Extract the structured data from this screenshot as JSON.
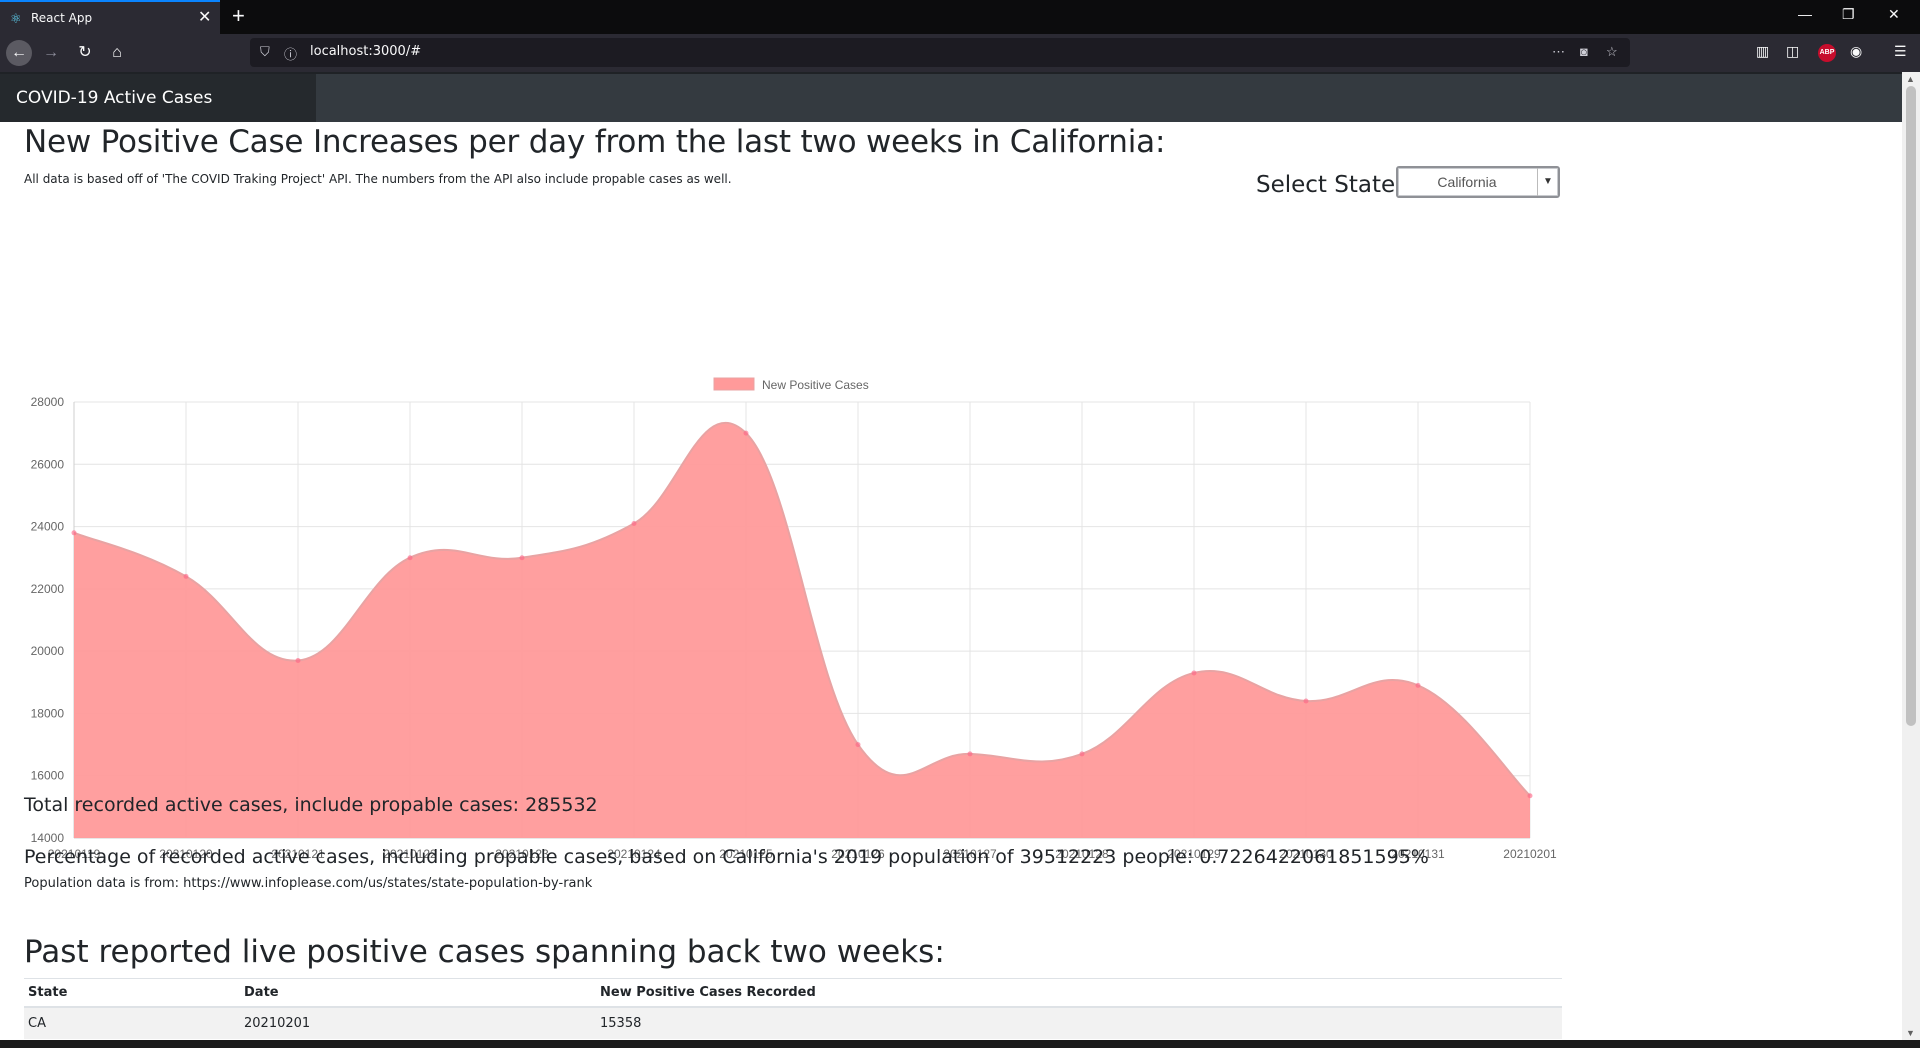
{
  "browser": {
    "tab_title": "React App",
    "url": "localhost:3000/#"
  },
  "app": {
    "brand": "COVID-19 Active Cases"
  },
  "page": {
    "heading": "New Positive Case Increases per day from the last two weeks in California:",
    "note": "All data is based off of 'The COVID Traking Project' API. The numbers from the API also include propable cases as well.",
    "select_label": "Select State:",
    "selected_state": "California",
    "total_text": "Total recorded active cases, include propable cases: 285532",
    "percentage_text": "Percentage of recorded active cases, including propable cases, based on California's 2019 population of 39512223 people: 0.7226422061851595%",
    "population_source": "Population data is from: https://www.infoplease.com/us/states/state-population-by-rank",
    "table_heading": "Past reported live positive cases spanning back two weeks:"
  },
  "table": {
    "headers": [
      "State",
      "Date",
      "New Positive Cases Recorded"
    ],
    "rows": [
      [
        "CA",
        "20210201",
        "15358"
      ]
    ]
  },
  "colors": {
    "fill": "#ff9a9a",
    "line": "#e8a3a3",
    "point": "#ff6384"
  },
  "chart_data": {
    "type": "area",
    "title": "",
    "x": [
      "20210119",
      "20210120",
      "20210121",
      "20210122",
      "20210123",
      "20210124",
      "20210125",
      "20210126",
      "20210127",
      "20210128",
      "20210129",
      "20210130",
      "20210131",
      "20210201"
    ],
    "series": [
      {
        "name": "New Positive Cases",
        "values": [
          23800,
          22400,
          19700,
          23000,
          23000,
          24100,
          27000,
          17000,
          16700,
          16700,
          19300,
          18400,
          18900,
          15358
        ]
      }
    ],
    "ylim": [
      14000,
      28000
    ],
    "yticks": [
      14000,
      16000,
      18000,
      20000,
      22000,
      24000,
      26000,
      28000
    ],
    "grid": true,
    "legend": "top-center"
  }
}
